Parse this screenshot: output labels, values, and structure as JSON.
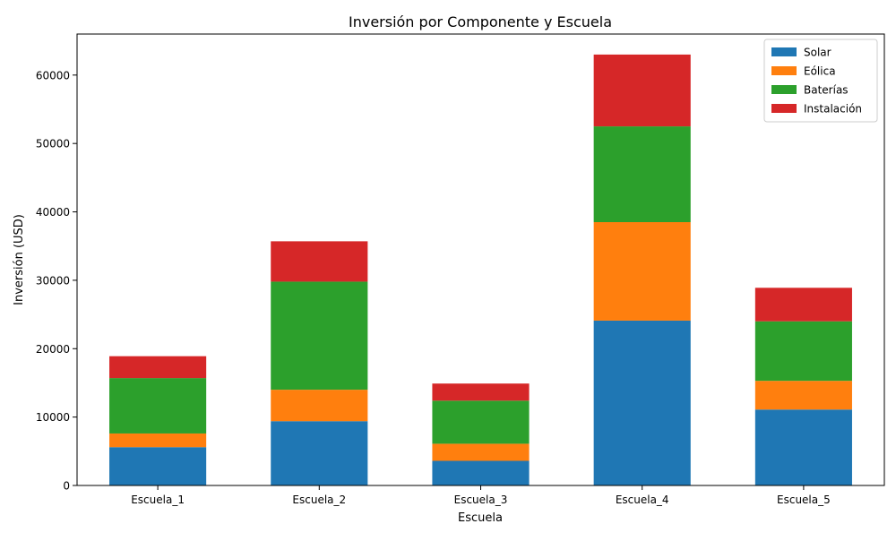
{
  "chart_data": {
    "type": "bar",
    "stacked": true,
    "title": "Inversión por Componente y Escuela",
    "xlabel": "Escuela",
    "ylabel": "Inversión (USD)",
    "categories": [
      "Escuela_1",
      "Escuela_2",
      "Escuela_3",
      "Escuela_4",
      "Escuela_5"
    ],
    "series": [
      {
        "name": "Solar",
        "color": "#1f77b4",
        "values": [
          5600,
          9400,
          3600,
          24100,
          11100
        ]
      },
      {
        "name": "Eólica",
        "color": "#ff7f0e",
        "values": [
          2000,
          4600,
          2500,
          14400,
          4200
        ]
      },
      {
        "name": "Baterías",
        "color": "#2ca02c",
        "values": [
          8100,
          15800,
          6300,
          14000,
          8700
        ]
      },
      {
        "name": "Instalación",
        "color": "#d62728",
        "values": [
          3200,
          5900,
          2500,
          10500,
          4900
        ]
      }
    ],
    "ylim": [
      0,
      66000
    ],
    "yticks": [
      0,
      10000,
      20000,
      30000,
      40000,
      50000,
      60000
    ],
    "grid": false,
    "legend_position": "top-right"
  }
}
